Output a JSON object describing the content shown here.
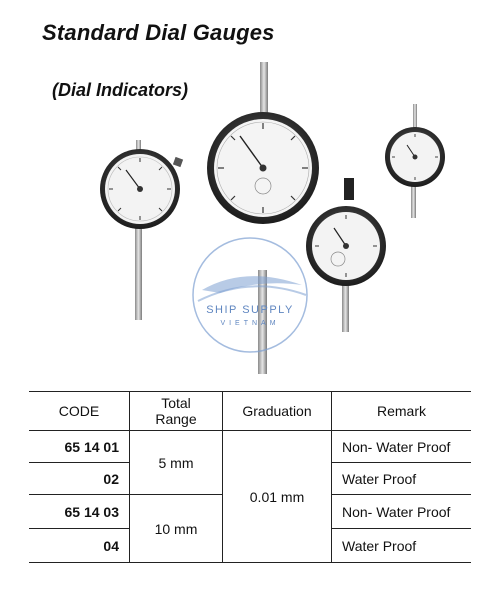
{
  "header": {
    "title": "Standard Dial Gauges",
    "subtitle": "(Dial Indicators)"
  },
  "watermark": {
    "name": "SHIP SUPPLY",
    "country": "VIETNAM"
  },
  "table": {
    "headers": {
      "code": "CODE",
      "total_range_line1": "Total",
      "total_range_line2": "Range",
      "graduation": "Graduation",
      "remark": "Remark"
    },
    "rows": [
      {
        "code": "65 14 01",
        "remark": "Non- Water Proof"
      },
      {
        "code": "02",
        "remark": "Water Proof"
      },
      {
        "code": "65 14 03",
        "remark": "Non- Water Proof"
      },
      {
        "code": "04",
        "remark": "Water Proof"
      }
    ],
    "ranges": [
      "5 mm",
      "10 mm"
    ],
    "graduation": "0.01 mm"
  },
  "colors": {
    "watermark": "#5f86c0",
    "rule": "#222222"
  }
}
